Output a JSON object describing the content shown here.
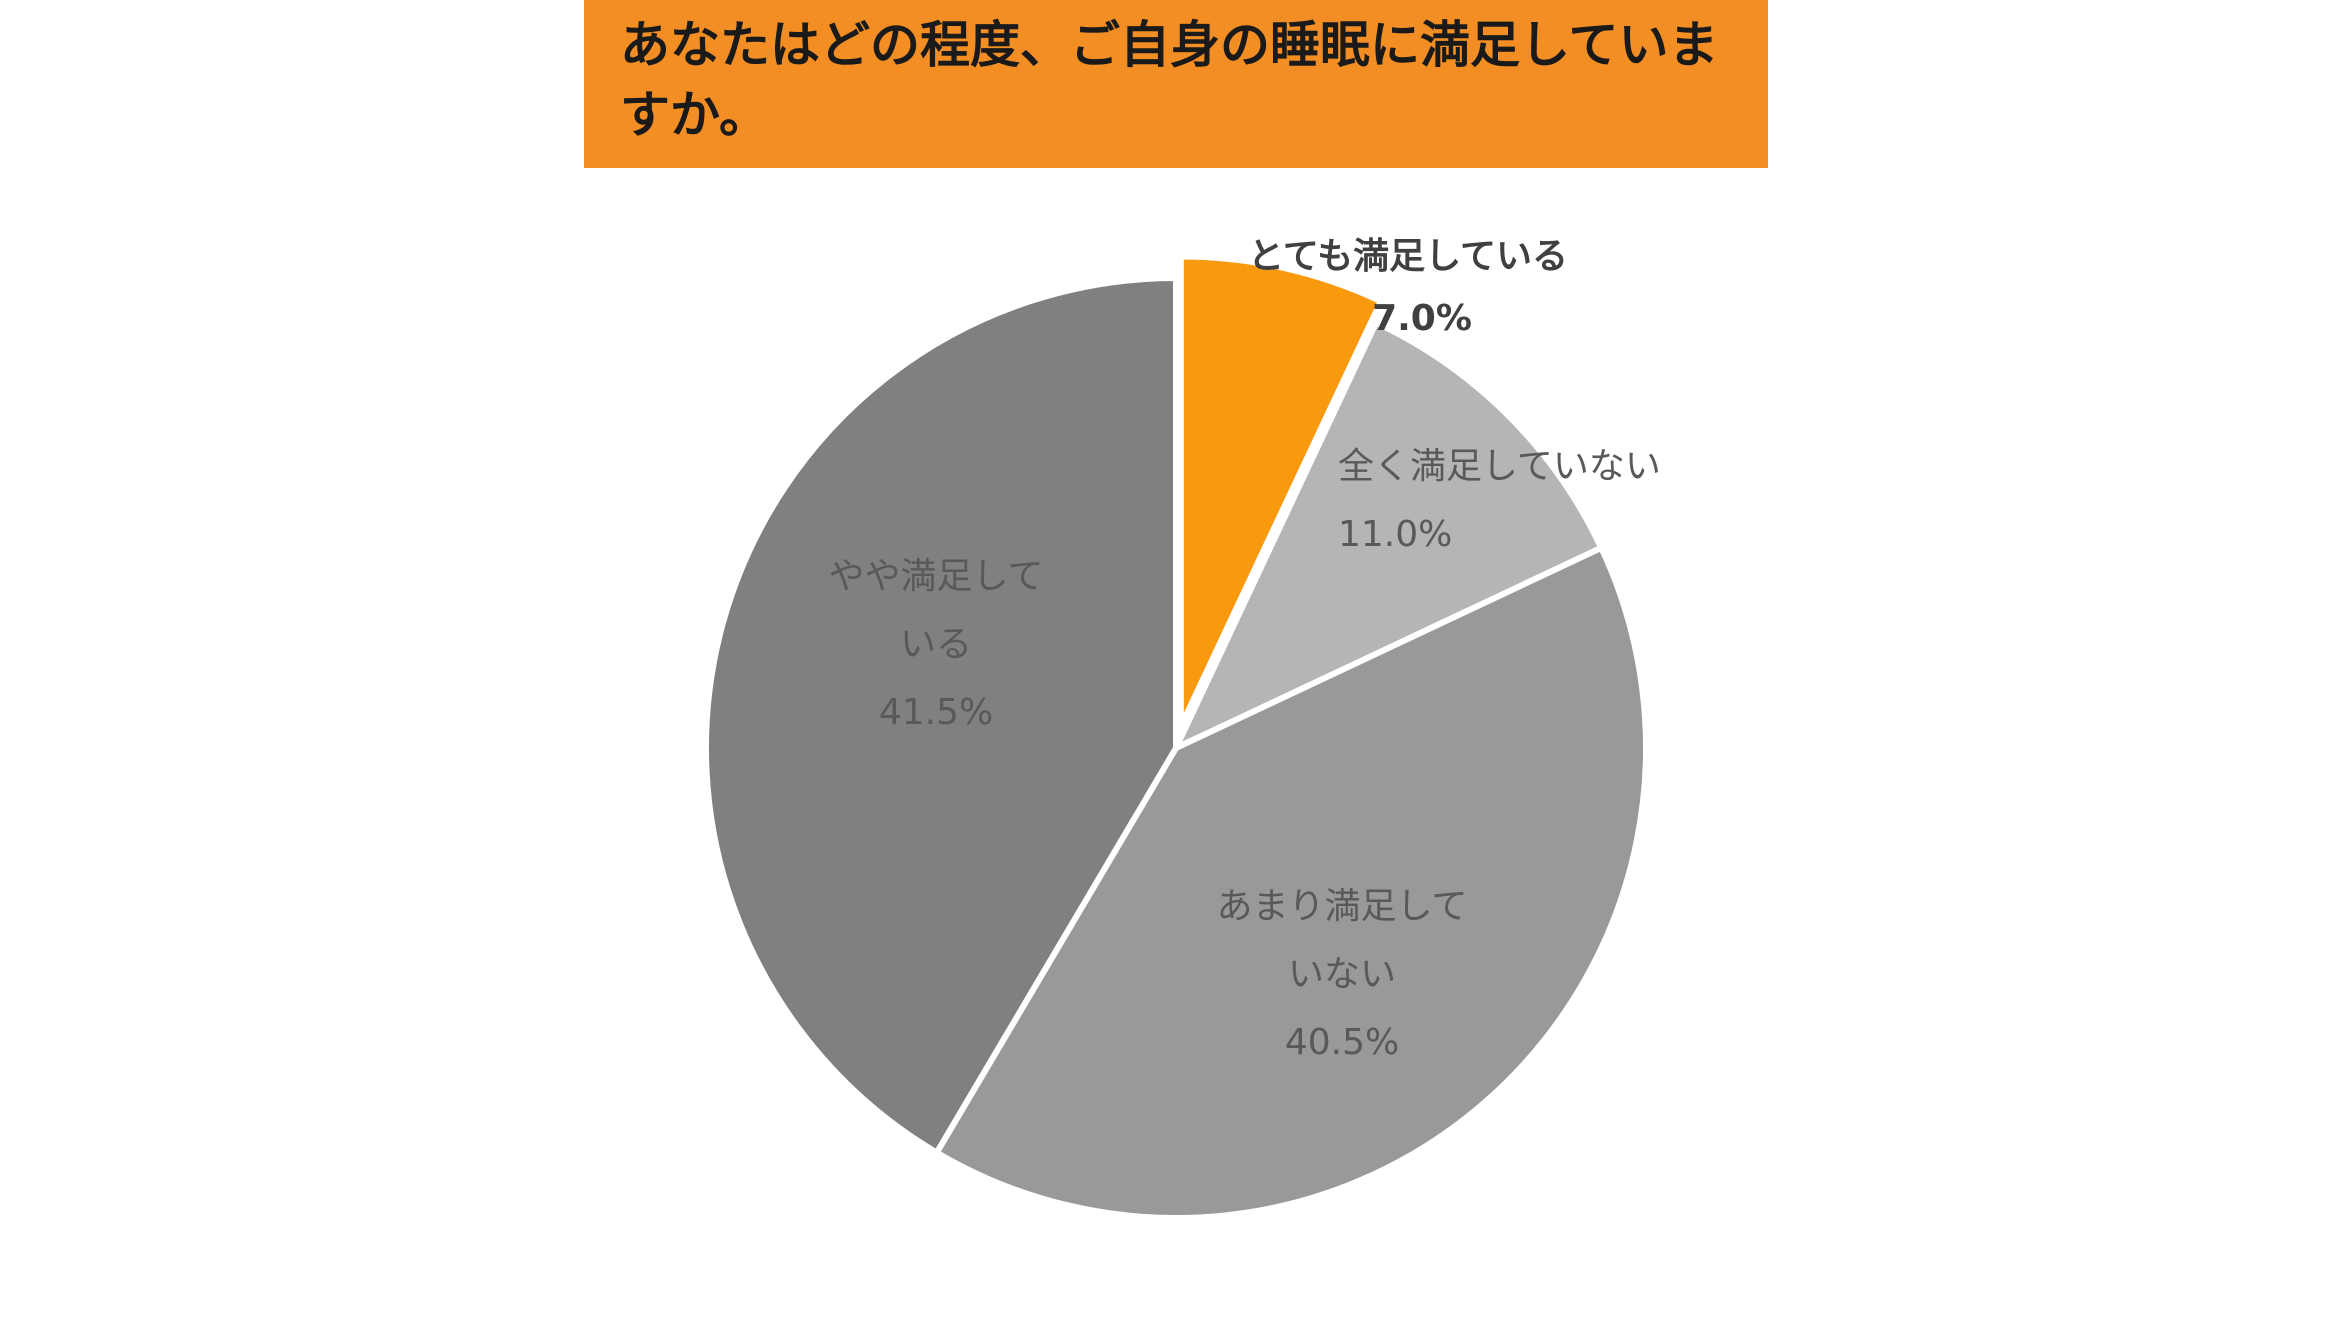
{
  "chart_data": {
    "type": "pie",
    "title": "あなたはどの程度、ご自身の睡眠に満足していますか。",
    "legend": "none",
    "slices": [
      {
        "label": "とても満足している",
        "label_lines": [
          "とても満足している"
        ],
        "percent_text": "7.0%",
        "value": 7.0,
        "color": "#f99a0e",
        "exploded": true
      },
      {
        "label": "全く満足していない",
        "label_lines": [
          "全く満足していない"
        ],
        "percent_text": "11.0%",
        "value": 11.0,
        "color": "#b5b5b5",
        "exploded": false
      },
      {
        "label": "あまり満足していない",
        "label_lines": [
          "あまり満足して",
          "いない"
        ],
        "percent_text": "40.5%",
        "value": 40.5,
        "color": "#999999",
        "exploded": false
      },
      {
        "label": "やや満足している",
        "label_lines": [
          "やや満足して",
          "いる"
        ],
        "percent_text": "41.5%",
        "value": 41.5,
        "color": "#808080",
        "exploded": false
      }
    ]
  }
}
